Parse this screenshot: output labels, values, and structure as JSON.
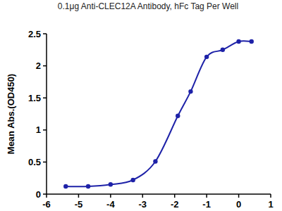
{
  "chart_data": {
    "type": "line",
    "title": "0.1μg Anti-CLEC12A Antibody, hFc Tag Per Well",
    "y_label": "Mean Abs.(OD450)",
    "x": [
      -5.4,
      -4.7,
      -4.0,
      -3.3,
      -2.6,
      -1.9,
      -1.5,
      -1.0,
      -0.5,
      0.0,
      0.4
    ],
    "series": [
      {
        "name": "Anti-CLEC12A Antibody, hFc Tag",
        "color": "#1e22a8",
        "values": [
          0.12,
          0.12,
          0.15,
          0.22,
          0.51,
          1.22,
          1.6,
          2.14,
          2.25,
          2.38,
          2.38
        ],
        "marker": "circle",
        "line_style": "solid"
      }
    ],
    "xlim": [
      -6,
      1
    ],
    "xticks": [
      -6,
      -5,
      -4,
      -3,
      -2,
      -1,
      0,
      1
    ],
    "ylim": [
      0,
      2.5
    ],
    "yticks": [
      0,
      0.5,
      1,
      1.5,
      2,
      2.5
    ],
    "grid": false
  }
}
